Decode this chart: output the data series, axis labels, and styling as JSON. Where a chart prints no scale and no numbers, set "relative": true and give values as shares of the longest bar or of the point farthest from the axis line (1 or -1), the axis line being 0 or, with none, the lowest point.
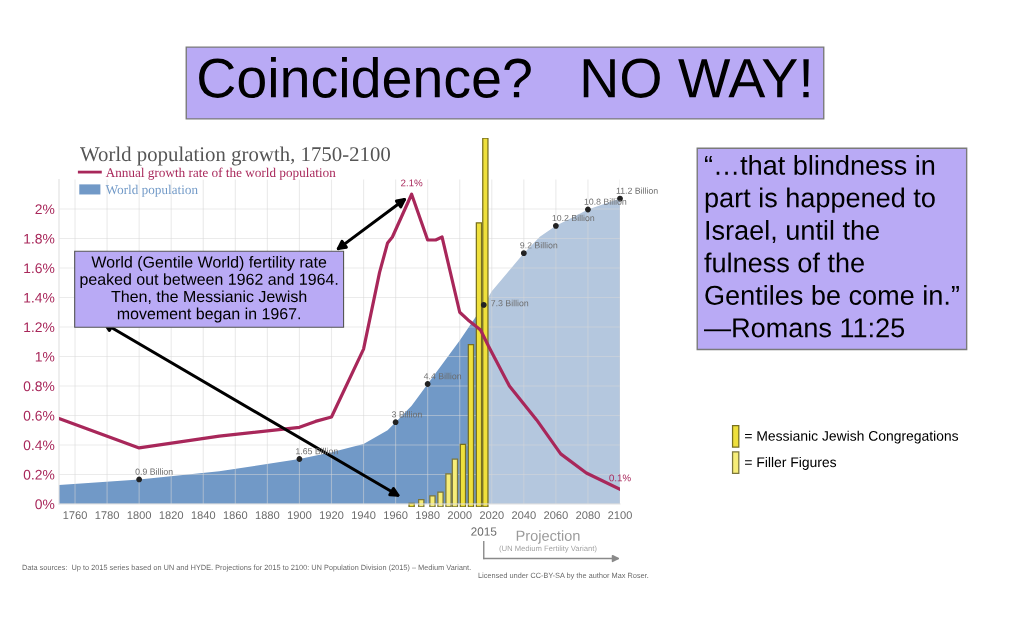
{
  "chart_data": [
    {
      "type": "line",
      "title": "Coincidence?   NO WAY!",
      "subtitle": "World population growth, 1750-2100",
      "xlim": [
        1750,
        2100
      ],
      "xticks": [
        1760,
        1780,
        1800,
        1820,
        1840,
        1860,
        1880,
        1900,
        1920,
        1940,
        1960,
        1980,
        2000,
        2020,
        2040,
        2060,
        2080,
        2100
      ],
      "ylim": [
        0,
        2.2
      ],
      "yticks": [
        {
          "value": 0,
          "label": "0%"
        },
        {
          "value": 0.2,
          "label": "0.2%"
        },
        {
          "value": 0.4,
          "label": "0.4%"
        },
        {
          "value": 0.6,
          "label": "0.6%"
        },
        {
          "value": 0.8,
          "label": "0.8%"
        },
        {
          "value": 1,
          "label": "1%"
        },
        {
          "value": 1.2,
          "label": "1.2%"
        },
        {
          "value": 1.4,
          "label": "1.4%"
        },
        {
          "value": 1.6,
          "label": "1.6%"
        },
        {
          "value": 1.8,
          "label": "1.8%"
        },
        {
          "value": 2,
          "label": "2%"
        }
      ],
      "y2lim": [
        0,
        11.9
      ],
      "grid": true,
      "legend": "top left",
      "series": [
        {
          "name": "Annual growth rate of the world population",
          "type": "line",
          "color": "#a8275a",
          "x": [
            1750,
            1800,
            1850,
            1900,
            1910,
            1920,
            1940,
            1950,
            1955,
            1958,
            1970,
            1980,
            1985,
            1989,
            2000,
            2006,
            2013,
            2018,
            2031,
            2048,
            2063,
            2079,
            2100
          ],
          "values": [
            0.58,
            0.38,
            0.46,
            0.52,
            0.56,
            0.59,
            1.05,
            1.57,
            1.77,
            1.81,
            2.1,
            1.79,
            1.79,
            1.81,
            1.3,
            1.24,
            1.18,
            1.07,
            0.8,
            0.57,
            0.34,
            0.21,
            0.1
          ],
          "value_labels": [
            null,
            null,
            null,
            null,
            null,
            null,
            null,
            null,
            null,
            null,
            "2.1%",
            null,
            null,
            null,
            null,
            null,
            null,
            null,
            null,
            null,
            null,
            null,
            "0.1%"
          ]
        },
        {
          "name": "World population",
          "type": "area",
          "axis": "y2",
          "color": "#7199c7",
          "x": [
            1750,
            1800,
            1850,
            1900,
            1920,
            1940,
            1955,
            1960,
            1970,
            1980,
            1990,
            2000,
            2015
          ],
          "values": [
            0.7,
            0.9,
            1.2,
            1.65,
            1.9,
            2.2,
            2.7,
            3,
            3.6,
            4.4,
            5.2,
            6,
            7.3
          ],
          "value_labels": [
            null,
            "0.9 Billion",
            null,
            "1.65 Billion",
            null,
            null,
            null,
            "3 Billion",
            null,
            "4.4 Billion",
            null,
            null,
            "7.3 Billion"
          ]
        },
        {
          "type": "area",
          "axis": "y2",
          "color": "#b4c7de",
          "x": [
            2015,
            2020,
            2030,
            2040,
            2050,
            2060,
            2070,
            2080,
            2090,
            2100
          ],
          "values": [
            7.3,
            7.8,
            8.5,
            9.2,
            9.8,
            10.2,
            10.5,
            10.8,
            11,
            11.2
          ],
          "value_labels": [
            null,
            null,
            null,
            "9.2 Billion",
            null,
            "10.2 Billion",
            null,
            "10.8 Billion",
            null,
            "11.2 Billion"
          ]
        }
      ],
      "ref_lines": [
        {
          "axis": "x",
          "value": 2015,
          "label": "2015",
          "color": "#8a8a8a"
        }
      ],
      "annotations": [
        {
          "text": "World (Gentile World) fertility rate\npeaked out between 1962 and 1964.\nThen, the Messianic Jewish\nmovement began in 1967.",
          "x": 1970,
          "y": 2.1
        },
        "“…that blindness in\npart is happened to\nIsrael, until the\nfulness of the\nGentiles be come in.”\n—Romans 11:25",
        "Data sources:  Up to 2015 series based on UN and HYDE. Projections for 2015 to 2100: UN Population Division (2015) – Medium Variant.",
        "Licensed under CC-BY-SA by the author Max Roser.",
        "Projection",
        "(UN Medium Fertility Variant)"
      ]
    },
    {
      "type": "bar",
      "relative": true,
      "xlim": [
        1750,
        2100
      ],
      "tick_labels": false,
      "legend": "right",
      "series": [
        {
          "name": "= Messianic Jewish Congregations",
          "color": "#efe03c",
          "x": [
            1970,
            2002,
            2007,
            2012,
            2016
          ],
          "values": [
            0.01,
            0.17,
            0.44,
            0.77,
            1
          ]
        },
        {
          "name": "= Filler Figures",
          "color": "#f6ed78",
          "x": [
            1976,
            1983,
            1988,
            1993,
            1997
          ],
          "values": [
            0.02,
            0.03,
            0.04,
            0.09,
            0.13
          ]
        }
      ]
    }
  ]
}
